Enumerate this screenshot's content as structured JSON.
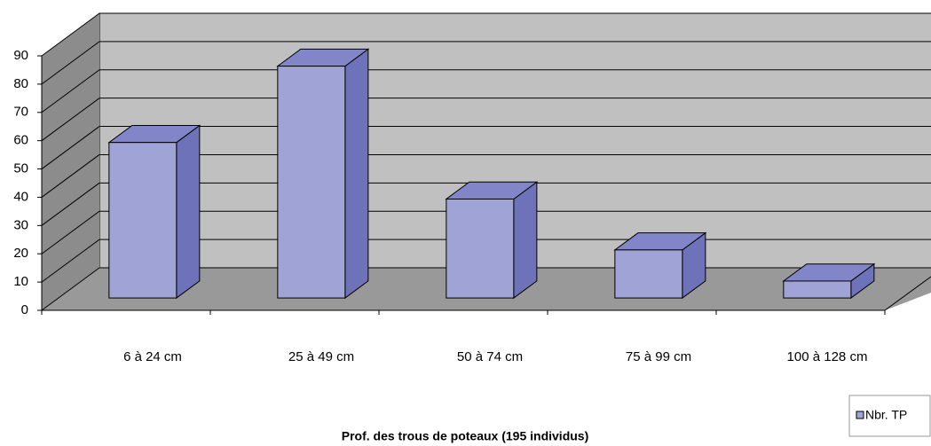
{
  "chart_data": {
    "type": "bar3d",
    "title": "Prof. des trous de poteaux (195 individus)",
    "categories": [
      "6 à 24 cm",
      "25 à 49 cm",
      "50 à 74 cm",
      "75 à 99 cm",
      "100 à 128 cm"
    ],
    "series": [
      {
        "name": "Nbr. TP",
        "color": "#9fa3d6",
        "values": [
          55,
          82,
          35,
          17,
          6
        ]
      }
    ],
    "ylim": [
      0,
      90
    ],
    "yticks": [
      0,
      10,
      20,
      30,
      40,
      50,
      60,
      70,
      80,
      90
    ],
    "grid": true,
    "legend": "bottom-right"
  }
}
